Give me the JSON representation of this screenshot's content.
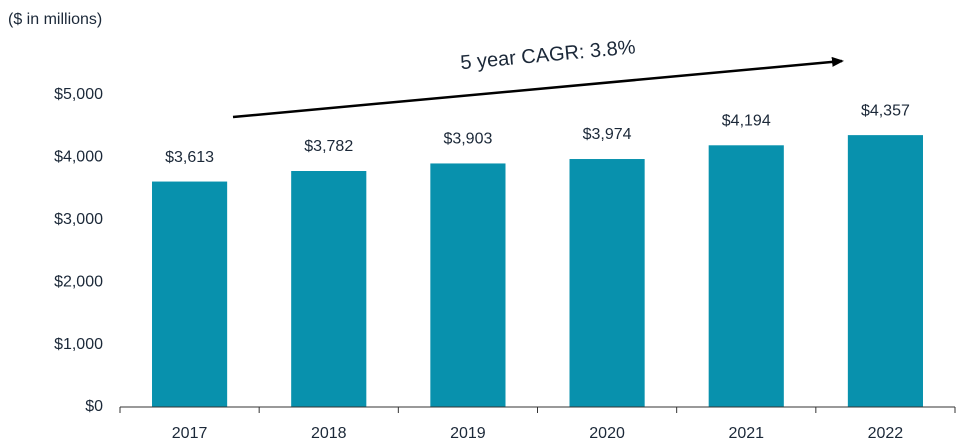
{
  "chart_data": {
    "type": "bar",
    "subtitle": "($ in millions)",
    "annotation": "5 year CAGR: 3.8%",
    "categories": [
      "2017",
      "2018",
      "2019",
      "2020",
      "2021",
      "2022"
    ],
    "values": [
      3613,
      3782,
      3903,
      3974,
      4194,
      4357
    ],
    "value_labels": [
      "$3,613",
      "$3,782",
      "$3,903",
      "$3,974",
      "$4,194",
      "$4,357"
    ],
    "color": "#0891ad",
    "ylim": [
      0,
      5000
    ],
    "yticks": [
      {
        "value": 0,
        "label": "$0"
      },
      {
        "value": 1000,
        "label": "$1,000"
      },
      {
        "value": 2000,
        "label": "$2,000"
      },
      {
        "value": 3000,
        "label": "$3,000"
      },
      {
        "value": 4000,
        "label": "$4,000"
      },
      {
        "value": 5000,
        "label": "$5,000"
      }
    ],
    "grid": false
  }
}
